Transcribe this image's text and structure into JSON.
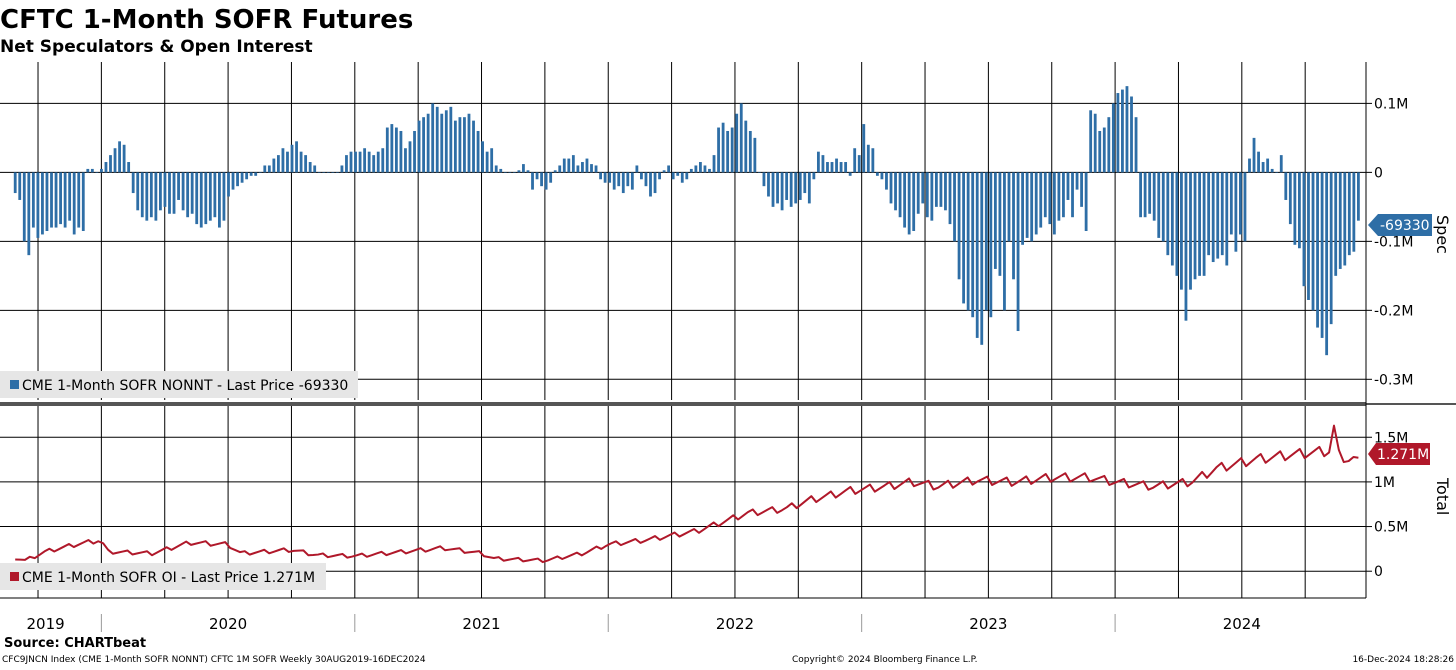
{
  "header": {
    "title": "CFTC 1-Month SOFR Futures",
    "subtitle": "Net Speculators & Open Interest"
  },
  "footer": {
    "source": "Source: CHARTbeat",
    "ticker_info": "CFC9JNCN Index (CME 1-Month SOFR NONNT) CFTC 1M SOFR  Weekly 30AUG2019-16DEC2024",
    "copyright": "Copyright© 2024 Bloomberg Finance L.P.",
    "timestamp": "16-Dec-2024 18:28:26"
  },
  "colors": {
    "spec": "#2e6ea6",
    "oi": "#b0182a",
    "grid": "#000000",
    "legend_bg": "#e6e6e6"
  },
  "chart_data": [
    {
      "type": "bar",
      "panel": "top",
      "axis_title": "Spec",
      "legend": "CME 1-Month SOFR NONNT - Last Price -69330",
      "last_value_label": "-69330",
      "last_value": -69330,
      "ylim": [
        -0.33,
        0.16
      ],
      "yticks": [
        0.1,
        0,
        -0.1,
        -0.2,
        -0.3
      ],
      "ytick_labels": [
        "0.1M",
        "0",
        "-0.1M",
        "-0.2M",
        "-0.3M"
      ],
      "units": "millions of contracts",
      "start": 2019.66,
      "end": 2024.96,
      "freq": "weekly",
      "values": [
        -0.03,
        -0.04,
        -0.1,
        -0.12,
        -0.08,
        -0.095,
        -0.09,
        -0.085,
        -0.08,
        -0.08,
        -0.075,
        -0.08,
        -0.07,
        -0.09,
        -0.08,
        -0.085,
        0.005,
        0.005,
        0,
        0.005,
        0.015,
        0.025,
        0.035,
        0.045,
        0.04,
        0.015,
        -0.03,
        -0.055,
        -0.065,
        -0.07,
        -0.065,
        -0.07,
        -0.055,
        -0.05,
        -0.06,
        -0.06,
        -0.04,
        -0.055,
        -0.065,
        -0.06,
        -0.075,
        -0.08,
        -0.075,
        -0.07,
        -0.065,
        -0.08,
        -0.07,
        -0.035,
        -0.025,
        -0.02,
        -0.015,
        -0.01,
        -0.005,
        -0.005,
        0,
        0.01,
        0.01,
        0.02,
        0.025,
        0.035,
        0.03,
        0.04,
        0.045,
        0.03,
        0.025,
        0.015,
        0.01,
        0,
        0,
        0,
        0,
        0,
        0.01,
        0.025,
        0.03,
        0.03,
        0.03,
        0.035,
        0.03,
        0.025,
        0.03,
        0.035,
        0.065,
        0.07,
        0.065,
        0.06,
        0.035,
        0.045,
        0.06,
        0.075,
        0.08,
        0.085,
        0.1,
        0.095,
        0.085,
        0.09,
        0.095,
        0.075,
        0.08,
        0.08,
        0.085,
        0.075,
        0.06,
        0.045,
        0.03,
        0.035,
        0.01,
        0.005,
        0,
        0,
        0,
        0.003,
        0.012,
        0.003,
        -0.025,
        -0.01,
        -0.02,
        -0.025,
        -0.015,
        0.003,
        0.01,
        0.02,
        0.02,
        0.025,
        0.01,
        0.015,
        0.02,
        0.012,
        0.01,
        -0.01,
        -0.015,
        -0.015,
        -0.025,
        -0.02,
        -0.03,
        -0.02,
        -0.025,
        0.01,
        -0.01,
        -0.02,
        -0.035,
        -0.03,
        -0.01,
        0.003,
        0.01,
        -0.01,
        -0.005,
        -0.015,
        -0.01,
        0.005,
        0.01,
        0.015,
        0.01,
        0.005,
        0.025,
        0.065,
        0.072,
        0.06,
        0.065,
        0.085,
        0.1,
        0.075,
        0.06,
        0.05,
        0,
        -0.02,
        -0.035,
        -0.05,
        -0.045,
        -0.055,
        -0.04,
        -0.05,
        -0.045,
        -0.04,
        -0.03,
        -0.045,
        -0.01,
        0.03,
        0.025,
        0.015,
        0.015,
        0.02,
        0.015,
        0.015,
        -0.005,
        0.035,
        0.025,
        0.07,
        0.04,
        0.035,
        -0.005,
        -0.01,
        -0.025,
        -0.045,
        -0.055,
        -0.065,
        -0.08,
        -0.09,
        -0.085,
        -0.06,
        -0.045,
        -0.065,
        -0.07,
        -0.05,
        -0.05,
        -0.055,
        -0.075,
        -0.1,
        -0.155,
        -0.19,
        -0.2,
        -0.21,
        -0.24,
        -0.25,
        -0.2,
        -0.21,
        -0.14,
        -0.15,
        -0.2,
        -0.1,
        -0.155,
        -0.23,
        -0.105,
        -0.095,
        -0.1,
        -0.09,
        -0.08,
        -0.065,
        -0.075,
        -0.09,
        -0.07,
        -0.065,
        -0.04,
        -0.065,
        -0.025,
        -0.05,
        -0.085,
        0.09,
        0.085,
        0.06,
        0.065,
        0.08,
        0.1,
        0.115,
        0.12,
        0.125,
        0.11,
        0.08,
        -0.065,
        -0.065,
        -0.06,
        -0.07,
        -0.095,
        -0.1,
        -0.12,
        -0.135,
        -0.15,
        -0.17,
        -0.215,
        -0.17,
        -0.155,
        -0.15,
        -0.15,
        -0.12,
        -0.13,
        -0.125,
        -0.12,
        -0.135,
        -0.09,
        -0.115,
        -0.09,
        -0.1,
        0.02,
        0.05,
        0.03,
        0.015,
        0.02,
        0.005,
        0,
        0.025,
        -0.04,
        -0.075,
        -0.105,
        -0.11,
        -0.165,
        -0.185,
        -0.2,
        -0.225,
        -0.24,
        -0.265,
        -0.22,
        -0.15,
        -0.14,
        -0.135,
        -0.12,
        -0.115,
        -0.07
      ]
    },
    {
      "type": "line",
      "panel": "bottom",
      "axis_title": "Total",
      "legend": "CME 1-Month SOFR OI - Last Price 1.271M",
      "last_value_label": "1.271M",
      "last_value": 1.271,
      "ylim": [
        -0.3,
        1.85
      ],
      "yticks": [
        1.5,
        1,
        0.5,
        0
      ],
      "ytick_labels": [
        "1.5M",
        "1M",
        "0.5M",
        "0"
      ],
      "units": "millions of contracts",
      "start": 2019.66,
      "end": 2024.96,
      "freq": "weekly",
      "anchors": [
        [
          2019.66,
          0.15
        ],
        [
          2019.7,
          0.12
        ],
        [
          2019.78,
          0.22
        ],
        [
          2019.9,
          0.3
        ],
        [
          2020.0,
          0.35
        ],
        [
          2020.02,
          0.22
        ],
        [
          2020.2,
          0.2
        ],
        [
          2020.35,
          0.32
        ],
        [
          2020.5,
          0.3
        ],
        [
          2020.55,
          0.2
        ],
        [
          2020.75,
          0.24
        ],
        [
          2020.85,
          0.18
        ],
        [
          2021.0,
          0.17
        ],
        [
          2021.2,
          0.22
        ],
        [
          2021.35,
          0.26
        ],
        [
          2021.5,
          0.2
        ],
        [
          2021.55,
          0.14
        ],
        [
          2021.75,
          0.12
        ],
        [
          2021.9,
          0.2
        ],
        [
          2022.0,
          0.3
        ],
        [
          2022.15,
          0.35
        ],
        [
          2022.35,
          0.45
        ],
        [
          2022.45,
          0.55
        ],
        [
          2022.55,
          0.65
        ],
        [
          2022.7,
          0.7
        ],
        [
          2022.8,
          0.8
        ],
        [
          2022.95,
          0.9
        ],
        [
          2023.1,
          0.95
        ],
        [
          2023.2,
          1.0
        ],
        [
          2023.3,
          0.95
        ],
        [
          2023.45,
          1.02
        ],
        [
          2023.6,
          1.0
        ],
        [
          2023.75,
          1.05
        ],
        [
          2023.9,
          1.05
        ],
        [
          2024.0,
          1.0
        ],
        [
          2024.15,
          0.95
        ],
        [
          2024.3,
          1.0
        ],
        [
          2024.4,
          1.15
        ],
        [
          2024.55,
          1.25
        ],
        [
          2024.68,
          1.3
        ],
        [
          2024.85,
          1.35
        ],
        [
          2024.92,
          1.25
        ],
        [
          2024.96,
          1.271
        ]
      ]
    }
  ],
  "x_axis": {
    "years": [
      "2019",
      "2020",
      "2021",
      "2022",
      "2023",
      "2024"
    ],
    "year_centers": [
      2019.78,
      2020.5,
      2021.5,
      2022.5,
      2023.5,
      2024.5
    ],
    "year_starts": [
      2020,
      2021,
      2022,
      2023,
      2024,
      2025
    ]
  }
}
